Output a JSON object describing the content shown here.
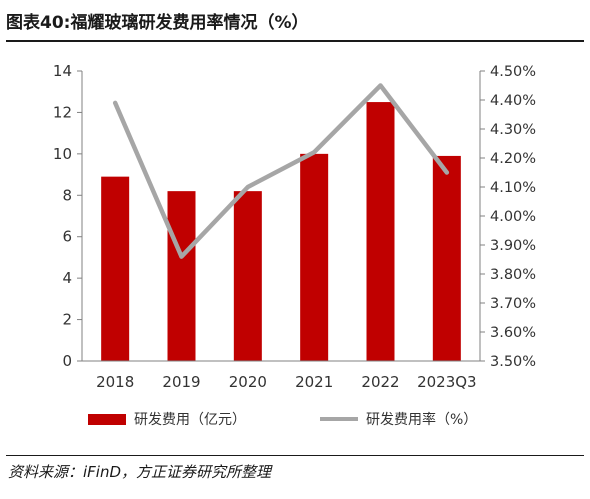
{
  "title": "图表40:福耀玻璃研发费用率情况（%）",
  "source": "资料来源：iFinD，方正证券研究所整理",
  "colors": {
    "bar": "#C00000",
    "line": "#A6A6A6",
    "axis": "#808080",
    "text": "#333333"
  },
  "chart_data": {
    "type": "bar",
    "categories": [
      "2018",
      "2019",
      "2020",
      "2021",
      "2022",
      "2023Q3"
    ],
    "series": [
      {
        "name": "研发费用（亿元）",
        "type": "bar",
        "axis": "left",
        "values": [
          8.9,
          8.2,
          8.2,
          10.0,
          12.5,
          9.9
        ]
      },
      {
        "name": "研发费用率（%）",
        "type": "line",
        "axis": "right",
        "values": [
          4.39,
          3.86,
          4.1,
          4.22,
          4.45,
          4.15
        ]
      }
    ],
    "y_left": {
      "min": 0,
      "max": 14,
      "ticks": [
        "0",
        "2",
        "4",
        "6",
        "8",
        "10",
        "12",
        "14"
      ]
    },
    "y_right": {
      "min": 3.5,
      "max": 4.5,
      "ticks": [
        "3.50%",
        "3.60%",
        "3.70%",
        "3.80%",
        "3.90%",
        "4.00%",
        "4.10%",
        "4.20%",
        "4.30%",
        "4.40%",
        "4.50%"
      ]
    },
    "legend_position": "bottom",
    "grid": false
  }
}
